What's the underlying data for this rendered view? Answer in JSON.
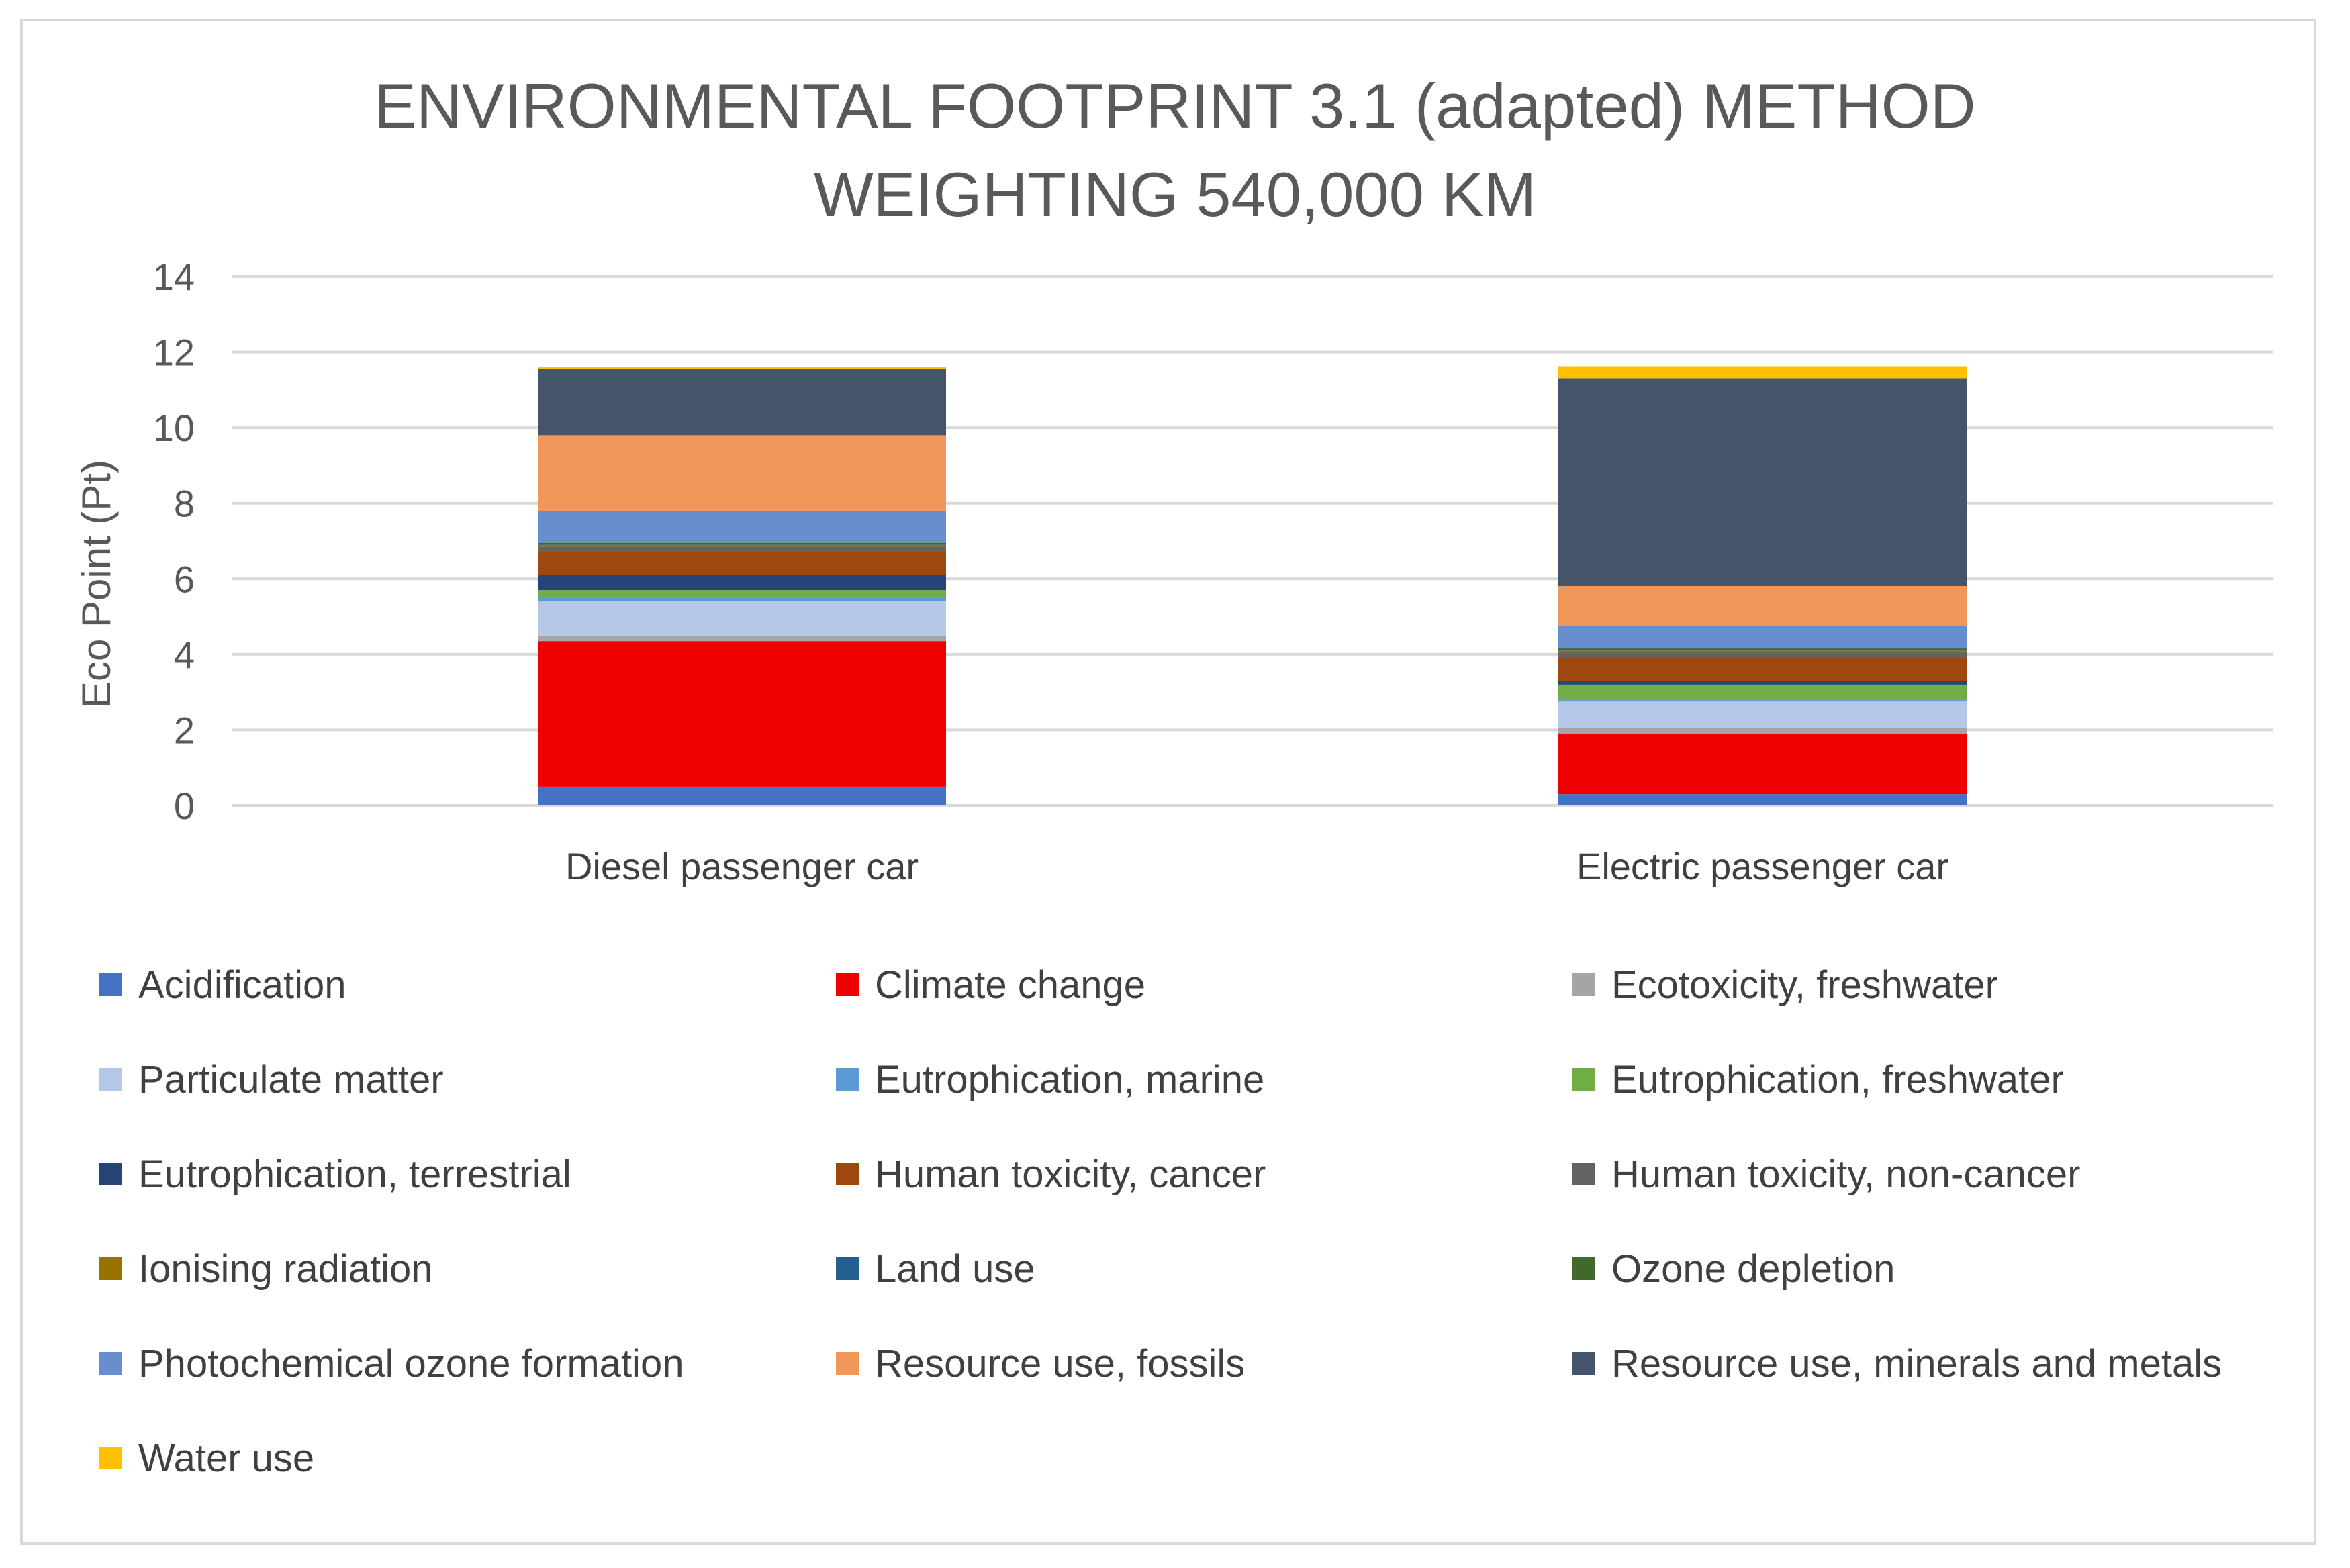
{
  "chart_data": {
    "type": "bar",
    "stacked": true,
    "title_lines": [
      "ENVIRONMENTAL FOOTPRINT 3.1 (adapted) METHOD",
      "WEIGHTING 540,000 KM"
    ],
    "xlabel": "",
    "ylabel": "Eco Point (Pt)",
    "ylim": [
      0,
      14
    ],
    "yticks": [
      0,
      2,
      4,
      6,
      8,
      10,
      12,
      14
    ],
    "ytick_labels": [
      "0",
      "2",
      "4",
      "6",
      "8",
      "10",
      "12",
      "14"
    ],
    "grid": true,
    "legend_position": "bottom",
    "categories": [
      "Diesel passenger car",
      "Electric passenger car"
    ],
    "series": [
      {
        "name": "Acidification",
        "color": "#4472c4",
        "values": [
          0.5,
          0.3
        ]
      },
      {
        "name": "Climate change",
        "color": "#ee0000",
        "values": [
          3.85,
          1.6
        ]
      },
      {
        "name": "Ecotoxicity, freshwater",
        "color": "#a5a5a5",
        "values": [
          0.15,
          0.15
        ]
      },
      {
        "name": "Particulate matter",
        "color": "#b4c7e7",
        "values": [
          0.9,
          0.7
        ]
      },
      {
        "name": "Eutrophication, marine",
        "color": "#5b9bd5",
        "values": [
          0.1,
          0.05
        ]
      },
      {
        "name": "Eutrophication, freshwater",
        "color": "#70ad47",
        "values": [
          0.2,
          0.4
        ]
      },
      {
        "name": "Eutrophication, terrestrial",
        "color": "#264478",
        "values": [
          0.4,
          0.1
        ]
      },
      {
        "name": "Human toxicity, cancer",
        "color": "#9e480e",
        "values": [
          0.6,
          0.6
        ]
      },
      {
        "name": "Human toxicity, non-cancer",
        "color": "#636363",
        "values": [
          0.15,
          0.15
        ]
      },
      {
        "name": "Ionising radiation",
        "color": "#997300",
        "values": [
          0.05,
          0.05
        ]
      },
      {
        "name": "Land use",
        "color": "#255e91",
        "values": [
          0.05,
          0.05
        ]
      },
      {
        "name": "Ozone depletion",
        "color": "#43682b",
        "values": [
          0.01,
          0.01
        ]
      },
      {
        "name": "Photochemical ozone formation",
        "color": "#698ed0",
        "values": [
          0.84,
          0.6
        ]
      },
      {
        "name": "Resource use, fossils",
        "color": "#f1975a",
        "values": [
          2.0,
          1.05
        ]
      },
      {
        "name": "Resource use, minerals and metals",
        "color": "#44546a",
        "values": [
          1.75,
          5.5
        ]
      },
      {
        "name": "Water use",
        "color": "#ffc000",
        "values": [
          0.05,
          0.3
        ]
      }
    ]
  },
  "colors": {
    "grid": "#d9d9d9",
    "frame": "#d9d9d9",
    "text": "#595959"
  }
}
